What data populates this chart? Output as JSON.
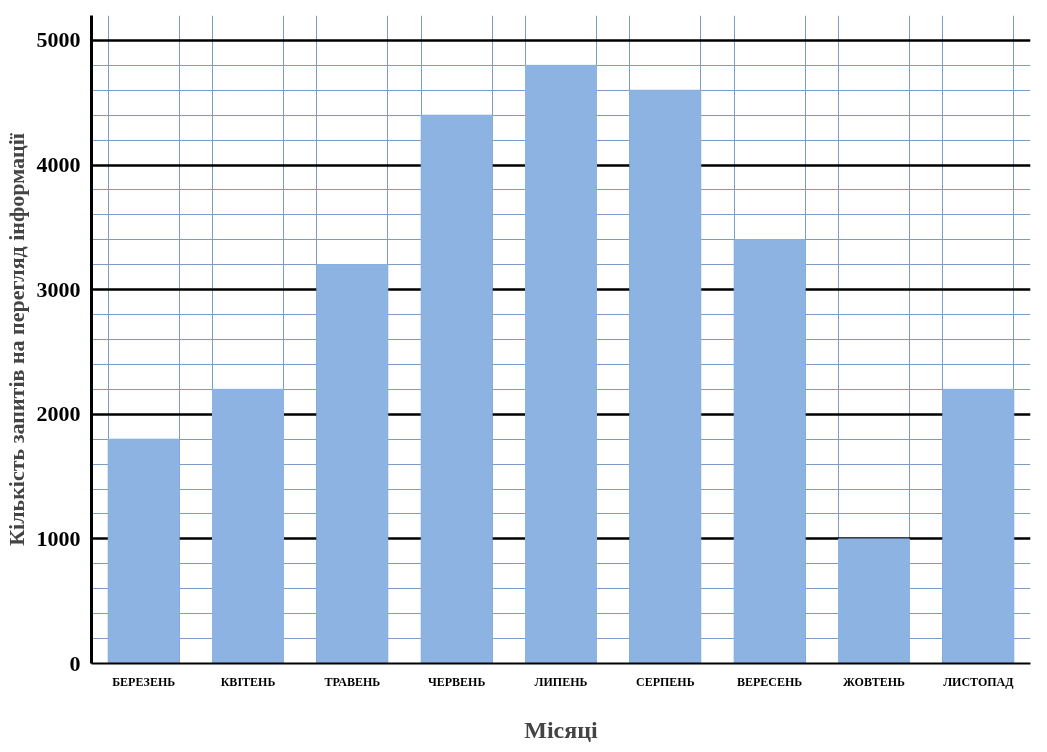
{
  "chart_data": {
    "type": "bar",
    "xlabel": "Місяці",
    "ylabel": "Кількість запитів на перегляд інформації",
    "categories": [
      "БЕРЕЗЕНЬ",
      "КВІТЕНЬ",
      "ТРАВЕНЬ",
      "ЧЕРВЕНЬ",
      "ЛИПЕНЬ",
      "СЕРПЕНЬ",
      "ВЕРЕСЕНЬ",
      "ЖОВТЕНЬ",
      "ЛИСТОПАД"
    ],
    "values": [
      1800,
      2200,
      3200,
      4400,
      4800,
      4600,
      3400,
      1000,
      2200
    ],
    "color": "#8db3e2",
    "ylim": [
      0,
      5200
    ],
    "yticks": [
      0,
      1000,
      2000,
      3000,
      4000,
      5000
    ],
    "grid": true
  }
}
